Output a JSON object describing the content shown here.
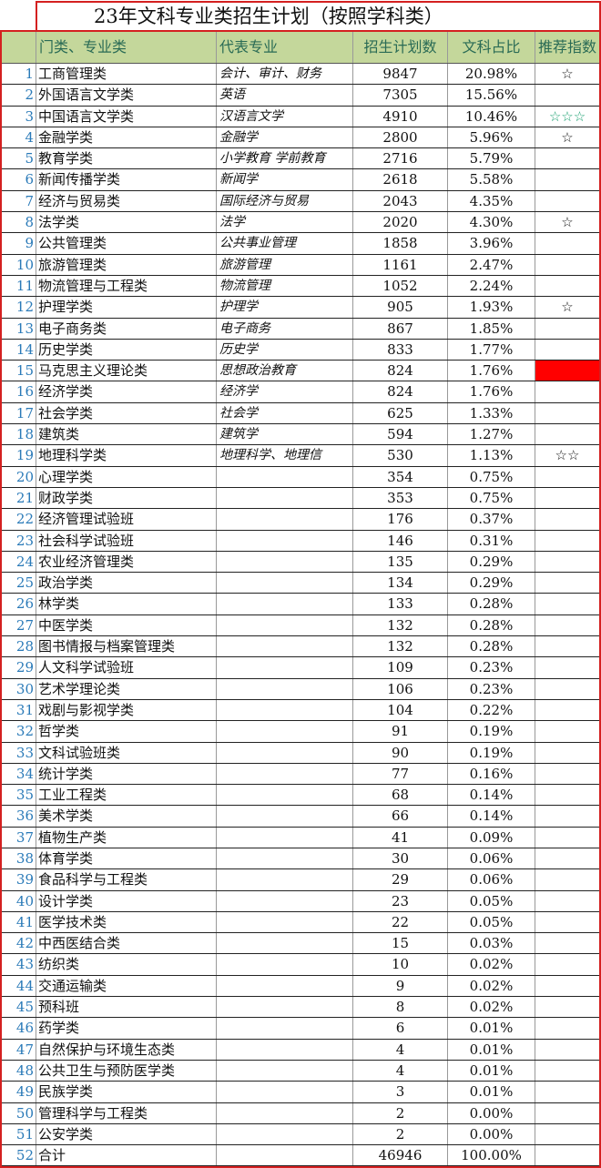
{
  "title": "23年文科专业类招生计划（按照学科类）",
  "headers": [
    "门类、专业类",
    "代表专业",
    "招生计划数",
    "文科占比",
    "推荐指数"
  ],
  "colors": {
    "header_bg": "#c4d79b",
    "border": "#d42020",
    "star_green": "#1aa070",
    "highlight": "#ff0000"
  },
  "rows": [
    {
      "i": "1",
      "name": "工商管理类",
      "rep": "会计、审计、财务",
      "num": "9847",
      "pct": "20.98%",
      "star": "☆"
    },
    {
      "i": "2",
      "name": "外国语言文学类",
      "rep": "英语",
      "num": "7305",
      "pct": "15.56%",
      "star": ""
    },
    {
      "i": "3",
      "name": "中国语言文学类",
      "rep": "汉语言文学",
      "num": "4910",
      "pct": "10.46%",
      "star": "☆☆☆",
      "star_color": "green"
    },
    {
      "i": "4",
      "name": "金融学类",
      "rep": "金融学",
      "num": "2800",
      "pct": "5.96%",
      "star": "☆"
    },
    {
      "i": "5",
      "name": "教育学类",
      "rep": "小学教育 学前教育",
      "num": "2716",
      "pct": "5.79%",
      "star": ""
    },
    {
      "i": "6",
      "name": "新闻传播学类",
      "rep": "新闻学",
      "num": "2618",
      "pct": "5.58%",
      "star": ""
    },
    {
      "i": "7",
      "name": "经济与贸易类",
      "rep": "国际经济与贸易",
      "num": "2043",
      "pct": "4.35%",
      "star": ""
    },
    {
      "i": "8",
      "name": "法学类",
      "rep": "法学",
      "num": "2020",
      "pct": "4.30%",
      "star": "☆"
    },
    {
      "i": "9",
      "name": "公共管理类",
      "rep": "公共事业管理",
      "num": "1858",
      "pct": "3.96%",
      "star": ""
    },
    {
      "i": "10",
      "name": "旅游管理类",
      "rep": "旅游管理",
      "num": "1161",
      "pct": "2.47%",
      "star": ""
    },
    {
      "i": "11",
      "name": "物流管理与工程类",
      "rep": "物流管理",
      "num": "1052",
      "pct": "2.24%",
      "star": ""
    },
    {
      "i": "12",
      "name": "护理学类",
      "rep": "护理学",
      "num": "905",
      "pct": "1.93%",
      "star": "☆"
    },
    {
      "i": "13",
      "name": "电子商务类",
      "rep": "电子商务",
      "num": "867",
      "pct": "1.85%",
      "star": ""
    },
    {
      "i": "14",
      "name": "历史学类",
      "rep": "历史学",
      "num": "833",
      "pct": "1.77%",
      "star": ""
    },
    {
      "i": "15",
      "name": "马克思主义理论类",
      "rep": "思想政治教育",
      "num": "824",
      "pct": "1.76%",
      "star": "",
      "star_color": "red"
    },
    {
      "i": "16",
      "name": "经济学类",
      "rep": "经济学",
      "num": "824",
      "pct": "1.76%",
      "star": ""
    },
    {
      "i": "17",
      "name": "社会学类",
      "rep": "社会学",
      "num": "625",
      "pct": "1.33%",
      "star": ""
    },
    {
      "i": "18",
      "name": "建筑类",
      "rep": "建筑学",
      "num": "594",
      "pct": "1.27%",
      "star": ""
    },
    {
      "i": "19",
      "name": "地理科学类",
      "rep": "地理科学、地理信",
      "num": "530",
      "pct": "1.13%",
      "star": "☆☆"
    },
    {
      "i": "20",
      "name": "心理学类",
      "rep": "",
      "num": "354",
      "pct": "0.75%",
      "star": ""
    },
    {
      "i": "21",
      "name": "财政学类",
      "rep": "",
      "num": "353",
      "pct": "0.75%",
      "star": ""
    },
    {
      "i": "22",
      "name": "经济管理试验班",
      "rep": "",
      "num": "176",
      "pct": "0.37%",
      "star": ""
    },
    {
      "i": "23",
      "name": "社会科学试验班",
      "rep": "",
      "num": "146",
      "pct": "0.31%",
      "star": ""
    },
    {
      "i": "24",
      "name": "农业经济管理类",
      "rep": "",
      "num": "135",
      "pct": "0.29%",
      "star": ""
    },
    {
      "i": "25",
      "name": "政治学类",
      "rep": "",
      "num": "134",
      "pct": "0.29%",
      "star": ""
    },
    {
      "i": "26",
      "name": "林学类",
      "rep": "",
      "num": "133",
      "pct": "0.28%",
      "star": ""
    },
    {
      "i": "27",
      "name": "中医学类",
      "rep": "",
      "num": "132",
      "pct": "0.28%",
      "star": ""
    },
    {
      "i": "28",
      "name": "图书情报与档案管理类",
      "rep": "",
      "num": "132",
      "pct": "0.28%",
      "star": ""
    },
    {
      "i": "29",
      "name": "人文科学试验班",
      "rep": "",
      "num": "109",
      "pct": "0.23%",
      "star": ""
    },
    {
      "i": "30",
      "name": "艺术学理论类",
      "rep": "",
      "num": "106",
      "pct": "0.23%",
      "star": ""
    },
    {
      "i": "31",
      "name": "戏剧与影视学类",
      "rep": "",
      "num": "104",
      "pct": "0.22%",
      "star": ""
    },
    {
      "i": "32",
      "name": "哲学类",
      "rep": "",
      "num": "91",
      "pct": "0.19%",
      "star": ""
    },
    {
      "i": "33",
      "name": "文科试验班类",
      "rep": "",
      "num": "90",
      "pct": "0.19%",
      "star": ""
    },
    {
      "i": "34",
      "name": "统计学类",
      "rep": "",
      "num": "77",
      "pct": "0.16%",
      "star": ""
    },
    {
      "i": "35",
      "name": "工业工程类",
      "rep": "",
      "num": "68",
      "pct": "0.14%",
      "star": ""
    },
    {
      "i": "36",
      "name": "美术学类",
      "rep": "",
      "num": "66",
      "pct": "0.14%",
      "star": ""
    },
    {
      "i": "37",
      "name": "植物生产类",
      "rep": "",
      "num": "41",
      "pct": "0.09%",
      "star": ""
    },
    {
      "i": "38",
      "name": "体育学类",
      "rep": "",
      "num": "30",
      "pct": "0.06%",
      "star": ""
    },
    {
      "i": "39",
      "name": "食品科学与工程类",
      "rep": "",
      "num": "29",
      "pct": "0.06%",
      "star": ""
    },
    {
      "i": "40",
      "name": "设计学类",
      "rep": "",
      "num": "23",
      "pct": "0.05%",
      "star": ""
    },
    {
      "i": "41",
      "name": "医学技术类",
      "rep": "",
      "num": "22",
      "pct": "0.05%",
      "star": ""
    },
    {
      "i": "42",
      "name": "中西医结合类",
      "rep": "",
      "num": "15",
      "pct": "0.03%",
      "star": ""
    },
    {
      "i": "43",
      "name": "纺织类",
      "rep": "",
      "num": "10",
      "pct": "0.02%",
      "star": ""
    },
    {
      "i": "44",
      "name": "交通运输类",
      "rep": "",
      "num": "9",
      "pct": "0.02%",
      "star": ""
    },
    {
      "i": "45",
      "name": "预科班",
      "rep": "",
      "num": "8",
      "pct": "0.02%",
      "star": ""
    },
    {
      "i": "46",
      "name": "药学类",
      "rep": "",
      "num": "6",
      "pct": "0.01%",
      "star": ""
    },
    {
      "i": "47",
      "name": "自然保护与环境生态类",
      "rep": "",
      "num": "4",
      "pct": "0.01%",
      "star": ""
    },
    {
      "i": "48",
      "name": "公共卫生与预防医学类",
      "rep": "",
      "num": "4",
      "pct": "0.01%",
      "star": ""
    },
    {
      "i": "49",
      "name": "民族学类",
      "rep": "",
      "num": "3",
      "pct": "0.01%",
      "star": ""
    },
    {
      "i": "50",
      "name": "管理科学与工程类",
      "rep": "",
      "num": "2",
      "pct": "0.00%",
      "star": ""
    },
    {
      "i": "51",
      "name": "公安学类",
      "rep": "",
      "num": "2",
      "pct": "0.00%",
      "star": ""
    },
    {
      "i": "52",
      "name": "合计",
      "rep": "",
      "num": "46946",
      "pct": "100.00%",
      "star": ""
    }
  ]
}
